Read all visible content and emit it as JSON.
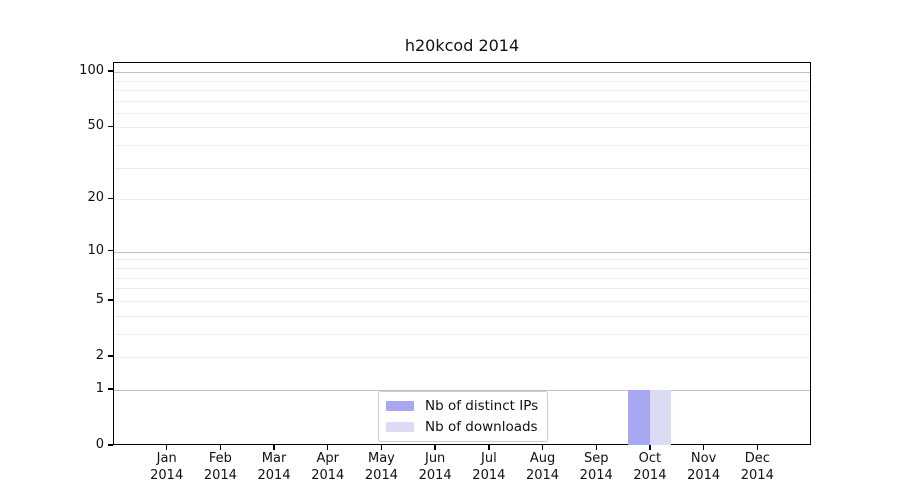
{
  "chart_data": {
    "type": "bar",
    "title": "h20kcod 2014",
    "categories": [
      "Jan 2014",
      "Feb 2014",
      "Mar 2014",
      "Apr 2014",
      "May 2014",
      "Jun 2014",
      "Jul 2014",
      "Aug 2014",
      "Sep 2014",
      "Oct 2014",
      "Nov 2014",
      "Dec 2014"
    ],
    "series": [
      {
        "name": "Nb of distinct IPs",
        "color": "#a8a8f2",
        "values": [
          0,
          0,
          0,
          0,
          0,
          0,
          0,
          0,
          0,
          1,
          0,
          0
        ]
      },
      {
        "name": "Nb of downloads",
        "color": "#dbdbf6",
        "values": [
          0,
          0,
          0,
          0,
          0,
          0,
          0,
          0,
          0,
          1,
          0,
          0
        ]
      }
    ],
    "yscale": "log1p",
    "ylim": [
      0,
      112
    ],
    "yticks": [
      0,
      1,
      2,
      5,
      10,
      20,
      50,
      100
    ],
    "major_gridlines": [
      1,
      10,
      100
    ],
    "minor_gridlines": [
      2,
      3,
      4,
      5,
      6,
      7,
      8,
      9,
      20,
      30,
      40,
      50,
      60,
      70,
      80,
      90
    ],
    "grid": true,
    "legend_position": "lower center",
    "colors": {
      "axis": "#000000",
      "major_grid": "#c2c2c2",
      "minor_grid": "#ededed",
      "background": "#ffffff"
    }
  }
}
